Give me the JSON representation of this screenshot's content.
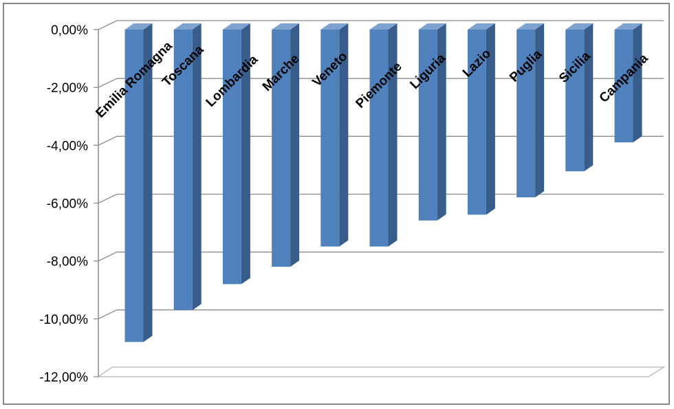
{
  "chart_data": {
    "type": "bar",
    "orientation": "vertical",
    "style": "3d-column",
    "categories": [
      "Emilia Romagna",
      "Toscana",
      "Lombardia",
      "Marche",
      "Veneto",
      "Piemonte",
      "Liguria",
      "Lazio",
      "Puglia",
      "Sicilia",
      "Campania"
    ],
    "values": [
      -10.8,
      -9.7,
      -8.8,
      -8.2,
      -7.5,
      -7.5,
      -6.6,
      -6.4,
      -5.8,
      -4.9,
      -3.9
    ],
    "yticks": [
      "0,00%",
      "-2,00%",
      "-4,00%",
      "-6,00%",
      "-8,00%",
      "-10,00%",
      "-12,00%"
    ],
    "ylim": [
      -12,
      0
    ],
    "title": "",
    "xlabel": "",
    "ylabel": "",
    "grid": true,
    "legend": "none",
    "colors": {
      "bar_front": "#4F81BD",
      "bar_side": "#385D8A",
      "bar_top": "#7FA3D1",
      "grid": "#8C8C8C",
      "floor": "#BFBFBF",
      "frame": "#888888"
    }
  }
}
